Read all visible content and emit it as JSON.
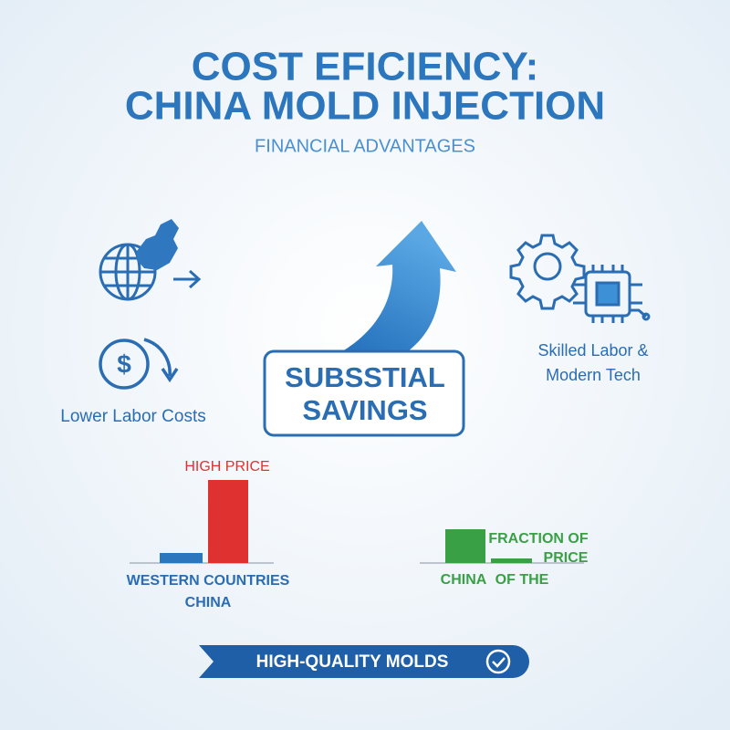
{
  "header": {
    "title_lines": [
      "COST EFICIENCY:",
      "CHINA MOLD INJECTION"
    ],
    "subtitle": "FINANCIAL ADVANTAGES"
  },
  "left_feature": {
    "label": "Lower Labor Costs"
  },
  "center_box": {
    "lines": [
      "SUBSSTIAL",
      "SAVINGS"
    ]
  },
  "right_feature": {
    "lines": [
      "Skilled Labor &",
      "Modern Tech"
    ]
  },
  "left_comparison": {
    "bar_label": "HIGH PRICE",
    "labels": [
      "WESTERN COUNTRIES",
      "CHINA"
    ]
  },
  "right_comparison": {
    "labels": [
      "FRACTION OF",
      "PRICE",
      "CHINA",
      "OF THE"
    ]
  },
  "banner": {
    "text": "HIGH-QUALITY MOLDS"
  }
}
